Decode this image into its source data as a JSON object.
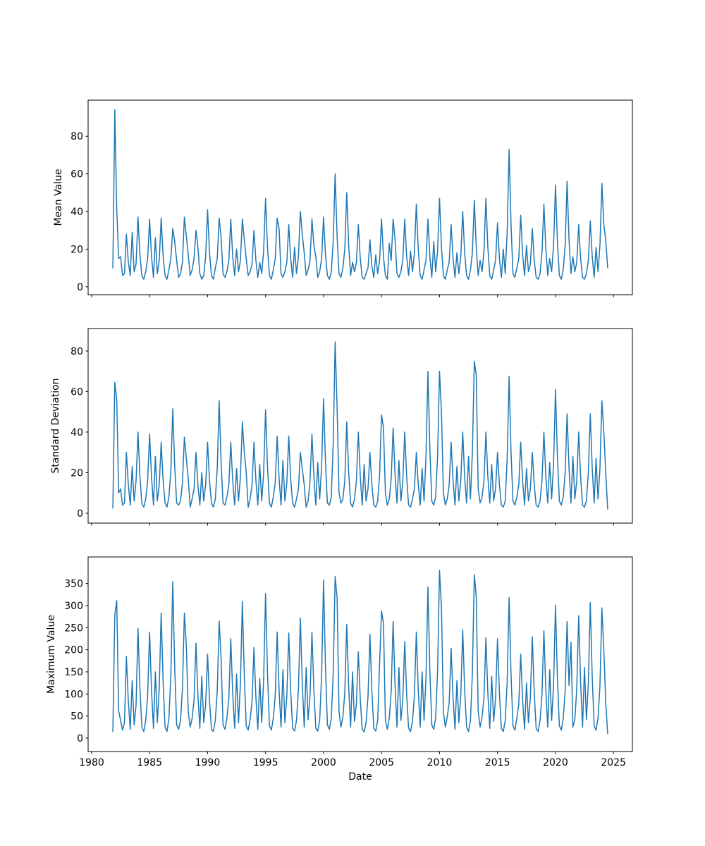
{
  "figure": {
    "background": "#ffffff",
    "line_color": "#1f77b4",
    "text_color": "#000000"
  },
  "chart_data": [
    {
      "type": "line",
      "title": "",
      "ylabel": "Mean Value",
      "xlabel": "",
      "legend": "none",
      "grid": false,
      "xlim": [
        1979.7,
        2026.63
      ],
      "ylim": [
        -4.2,
        99.2
      ],
      "x_ticks": [
        1980,
        1985,
        1990,
        1995,
        2000,
        2005,
        2010,
        2015,
        2020,
        2025
      ],
      "x_tick_labels": false,
      "y_ticks": [
        0,
        20,
        40,
        60,
        80
      ],
      "x_start": 1981.8333,
      "x_step": 0.1666667,
      "values": [
        10,
        94,
        41.5,
        15,
        16,
        6,
        7,
        28,
        13,
        6,
        29,
        8,
        12,
        37,
        17,
        6,
        4,
        8,
        15,
        36,
        16,
        5,
        26,
        7,
        14,
        36.5,
        16,
        6,
        4,
        9,
        15,
        31,
        24,
        14,
        5,
        7,
        13,
        37,
        27,
        17,
        6,
        9,
        15,
        30,
        21,
        7,
        4,
        6,
        16,
        41,
        18,
        6,
        4,
        10,
        15,
        36.5,
        26,
        7,
        5,
        8,
        14,
        36,
        16,
        6,
        20,
        8,
        14,
        36,
        25,
        15,
        6,
        8,
        12,
        30,
        14,
        5,
        13,
        7,
        19,
        47,
        21,
        6,
        4,
        9,
        15,
        36.5,
        31,
        7,
        5,
        8,
        13,
        33,
        15,
        5,
        21,
        7,
        16,
        40,
        28,
        18,
        6,
        9,
        14,
        36,
        22,
        16,
        5,
        8,
        15,
        37,
        17,
        6,
        4,
        8,
        24,
        60,
        27,
        7,
        5,
        10,
        20,
        50,
        22,
        6,
        13,
        8,
        13,
        33,
        15,
        5,
        4,
        7,
        10,
        25,
        11,
        5,
        17,
        7,
        14,
        36,
        16,
        6,
        4,
        23,
        14,
        36,
        25,
        7,
        5,
        8,
        14,
        36,
        16,
        6,
        19,
        8,
        18,
        44,
        20,
        6,
        4,
        9,
        14,
        36,
        16,
        5,
        24,
        8,
        19,
        47,
        21,
        6,
        4,
        9,
        13,
        33,
        15,
        5,
        18,
        7,
        16,
        40,
        18,
        6,
        4,
        9,
        18,
        46,
        21,
        6,
        14,
        8,
        19,
        47,
        21,
        6,
        4,
        9,
        14,
        34,
        15,
        5,
        20,
        7,
        29,
        73,
        33,
        7,
        5,
        10,
        15,
        38,
        17,
        6,
        22,
        8,
        12,
        31,
        14,
        5,
        4,
        7,
        18,
        44,
        20,
        6,
        15,
        8,
        22,
        54,
        24,
        6,
        4,
        9,
        22,
        56,
        25,
        7,
        16,
        8,
        13,
        33,
        15,
        5,
        4,
        7,
        14,
        35,
        16,
        5,
        21,
        8,
        22,
        55,
        33,
        25,
        10
      ]
    },
    {
      "type": "line",
      "title": "",
      "ylabel": "Standard Deviation",
      "xlabel": "",
      "legend": "none",
      "grid": false,
      "xlim": [
        1979.7,
        2026.63
      ],
      "ylim": [
        -4.9,
        91.1
      ],
      "x_ticks": [
        1980,
        1985,
        1990,
        1995,
        2000,
        2005,
        2010,
        2015,
        2020,
        2025
      ],
      "x_tick_labels": false,
      "y_ticks": [
        0,
        20,
        40,
        60,
        80
      ],
      "x_start": 1981.8333,
      "x_step": 0.1666667,
      "values": [
        2.5,
        64.5,
        56,
        10,
        12,
        4,
        5,
        30,
        14,
        4,
        23,
        6,
        16,
        40,
        18,
        5,
        3,
        7,
        16,
        39,
        18,
        4,
        28,
        6,
        14,
        35,
        16,
        5,
        3,
        8,
        21,
        51.5,
        23,
        5,
        4,
        6,
        15,
        37.5,
        27,
        17,
        3,
        7,
        12,
        30,
        14,
        4,
        20,
        6,
        14,
        35,
        16,
        5,
        3,
        7,
        22,
        55.5,
        25,
        5,
        4,
        8,
        14,
        35,
        16,
        4,
        22,
        6,
        18,
        45,
        30,
        20,
        3,
        7,
        14,
        35,
        16,
        4,
        24,
        6,
        20,
        51,
        23,
        5,
        3,
        8,
        15,
        38,
        17,
        4,
        26,
        6,
        15,
        38,
        17,
        5,
        3,
        7,
        12,
        30,
        22,
        14,
        3,
        6,
        16,
        39,
        18,
        4,
        25,
        7,
        23,
        56.5,
        25,
        5,
        4,
        8,
        34,
        84.5,
        52.5,
        10,
        5,
        7,
        16,
        45,
        20,
        5,
        3,
        7,
        16,
        40,
        18,
        4,
        24,
        6,
        12,
        30,
        14,
        4,
        3,
        6,
        19,
        48.5,
        42,
        10,
        4,
        7,
        17,
        42,
        19,
        5,
        26,
        6,
        16,
        40,
        18,
        4,
        3,
        7,
        12,
        30,
        14,
        4,
        22,
        6,
        28,
        70,
        32,
        6,
        4,
        8,
        28,
        70,
        50,
        10,
        4,
        7,
        14,
        35,
        16,
        4,
        23,
        6,
        16,
        40,
        18,
        5,
        28,
        7,
        30,
        75,
        68,
        12,
        5,
        8,
        16,
        40,
        18,
        5,
        24,
        6,
        12,
        30,
        14,
        4,
        3,
        6,
        27,
        67.5,
        30,
        6,
        4,
        8,
        14,
        35,
        16,
        4,
        22,
        6,
        12,
        30,
        14,
        4,
        3,
        6,
        16,
        40,
        18,
        5,
        25,
        7,
        24,
        61,
        28,
        6,
        4,
        8,
        20,
        49,
        22,
        5,
        28,
        7,
        16,
        40,
        18,
        4,
        3,
        6,
        20,
        49,
        22,
        5,
        27,
        7,
        22,
        55.5,
        40,
        20,
        2
      ]
    },
    {
      "type": "line",
      "title": "",
      "ylabel": "Maximum Value",
      "xlabel": "Date",
      "legend": "none",
      "grid": false,
      "xlim": [
        1979.7,
        2026.63
      ],
      "ylim": [
        -30.3,
        410
      ],
      "x_ticks": [
        1980,
        1985,
        1990,
        1995,
        2000,
        2005,
        2010,
        2015,
        2020,
        2025
      ],
      "x_tick_labels": true,
      "y_ticks": [
        0,
        50,
        100,
        150,
        200,
        250,
        300,
        350
      ],
      "x_start": 1981.8333,
      "x_step": 0.1666667,
      "values": [
        15,
        279,
        311,
        62,
        40,
        18,
        35,
        185,
        83,
        20,
        130,
        30,
        74,
        248,
        112,
        25,
        15,
        40,
        96,
        240,
        108,
        22,
        150,
        35,
        113,
        283,
        127,
        25,
        15,
        45,
        142,
        354,
        159,
        30,
        20,
        40,
        113,
        283,
        210,
        60,
        25,
        45,
        86,
        215,
        97,
        22,
        140,
        35,
        76,
        190,
        86,
        20,
        15,
        40,
        106,
        265,
        180,
        30,
        20,
        45,
        90,
        225,
        101,
        22,
        145,
        35,
        124,
        310,
        140,
        28,
        18,
        42,
        82,
        205,
        92,
        20,
        135,
        35,
        131,
        327,
        147,
        28,
        18,
        45,
        96,
        240,
        108,
        25,
        155,
        35,
        95,
        238,
        107,
        22,
        16,
        40,
        109,
        272,
        122,
        25,
        160,
        42,
        96,
        240,
        108,
        22,
        16,
        40,
        143,
        358,
        161,
        30,
        20,
        45,
        146,
        366,
        318,
        60,
        25,
        48,
        103,
        257,
        116,
        25,
        150,
        38,
        78,
        195,
        88,
        20,
        14,
        35,
        94,
        235,
        106,
        22,
        16,
        40,
        170,
        288,
        260,
        40,
        20,
        45,
        106,
        264,
        119,
        25,
        160,
        40,
        88,
        219,
        99,
        22,
        15,
        38,
        96,
        240,
        108,
        25,
        150,
        40,
        137,
        342,
        154,
        30,
        20,
        45,
        152,
        380,
        296,
        60,
        25,
        48,
        81,
        203,
        91,
        20,
        130,
        35,
        98,
        245,
        110,
        25,
        15,
        40,
        148,
        370,
        320,
        60,
        25,
        48,
        91,
        227,
        102,
        22,
        140,
        38,
        90,
        225,
        101,
        22,
        15,
        40,
        127,
        318,
        143,
        28,
        18,
        45,
        76,
        190,
        85,
        20,
        125,
        35,
        92,
        229,
        103,
        22,
        15,
        40,
        97,
        243,
        109,
        25,
        155,
        40,
        120,
        301,
        135,
        28,
        18,
        45,
        106,
        264,
        119,
        217,
        25,
        42,
        111,
        277,
        125,
        25,
        160,
        42,
        123,
        307,
        138,
        28,
        18,
        45,
        118,
        295,
        200,
        80,
        10
      ]
    }
  ]
}
